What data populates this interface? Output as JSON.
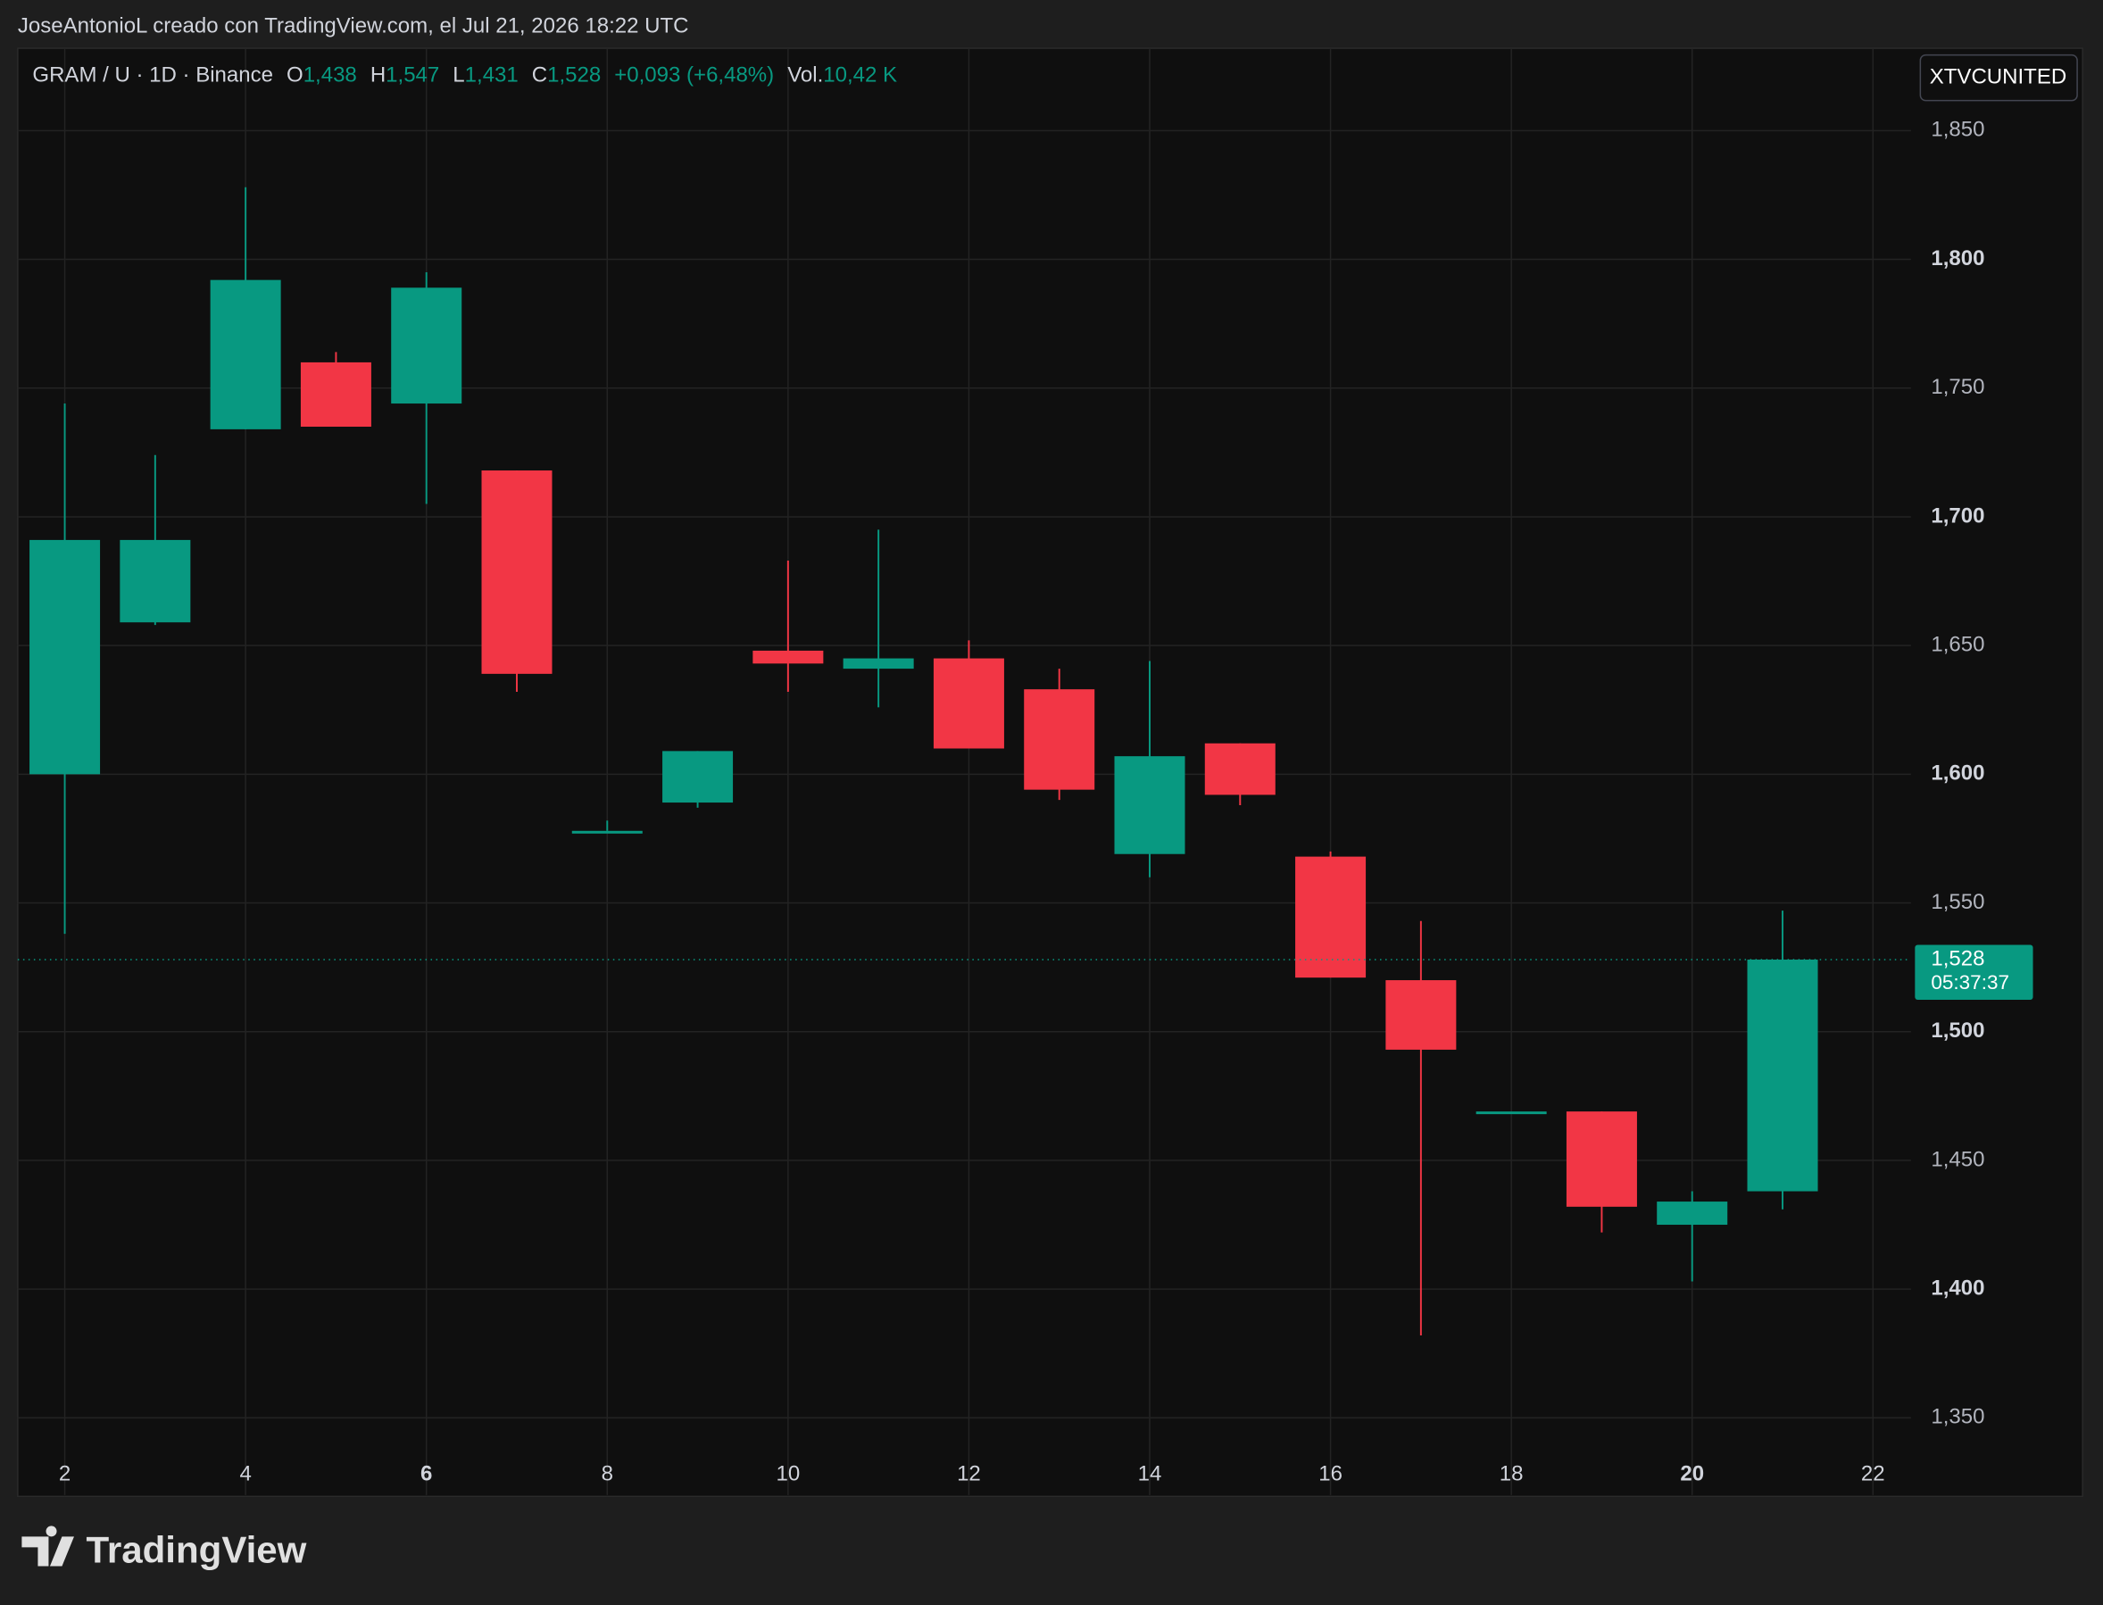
{
  "header": {
    "caption": "JoseAntonioL creado con TradingView.com, el Jul 21, 2026 18:22 UTC",
    "symbol": "GRAM / U · 1D · Binance",
    "o_label": "O",
    "o": "1,438",
    "h_label": "H",
    "h": "1,547",
    "l_label": "L",
    "l": "1,431",
    "c_label": "C",
    "c": "1,528",
    "change": "+0,093 (+6,48%)",
    "vol_label": "Vol.",
    "vol": "10,42 K",
    "exchange_badge": "XTVCUNITED"
  },
  "footer": {
    "brand": "TradingView"
  },
  "chart_data": {
    "type": "candlestick",
    "x": [
      2,
      3,
      4,
      5,
      6,
      7,
      8,
      9,
      10,
      11,
      12,
      13,
      14,
      15,
      16,
      17,
      18,
      19,
      20,
      21
    ],
    "open": [
      1.6,
      1.659,
      1.734,
      1.76,
      1.744,
      1.718,
      1.578,
      1.589,
      1.648,
      1.641,
      1.645,
      1.633,
      1.569,
      1.612,
      1.568,
      1.52,
      1.469,
      1.469,
      1.425,
      1.438
    ],
    "high": [
      1.744,
      1.724,
      1.828,
      1.764,
      1.795,
      1.718,
      1.582,
      1.609,
      1.683,
      1.695,
      1.652,
      1.641,
      1.644,
      1.612,
      1.57,
      1.543,
      1.469,
      1.469,
      1.438,
      1.547
    ],
    "low": [
      1.538,
      1.658,
      1.734,
      1.735,
      1.705,
      1.632,
      1.578,
      1.587,
      1.632,
      1.626,
      1.61,
      1.59,
      1.56,
      1.588,
      1.521,
      1.382,
      1.469,
      1.422,
      1.403,
      1.431
    ],
    "close": [
      1.691,
      1.691,
      1.792,
      1.735,
      1.789,
      1.639,
      1.578,
      1.609,
      1.643,
      1.645,
      1.61,
      1.594,
      1.607,
      1.592,
      1.521,
      1.493,
      1.469,
      1.432,
      1.434,
      1.528
    ],
    "up_color": "#089981",
    "down_color": "#f23645",
    "xlim": [
      1.48,
      22.42
    ],
    "xticks": [
      2,
      4,
      6,
      8,
      10,
      12,
      14,
      16,
      18,
      20,
      22
    ],
    "ylim": [
      1.32,
      1.882
    ],
    "yticks": [
      {
        "value": 1.35,
        "label": "1,350"
      },
      {
        "value": 1.4,
        "label": "1,400"
      },
      {
        "value": 1.45,
        "label": "1,450"
      },
      {
        "value": 1.5,
        "label": "1,500"
      },
      {
        "value": 1.55,
        "label": "1,550"
      },
      {
        "value": 1.6,
        "label": "1,600"
      },
      {
        "value": 1.65,
        "label": "1,650"
      },
      {
        "value": 1.7,
        "label": "1,700"
      },
      {
        "value": 1.75,
        "label": "1,750"
      },
      {
        "value": 1.8,
        "label": "1,800"
      },
      {
        "value": 1.85,
        "label": "1,850"
      }
    ],
    "grid": true,
    "last_price": {
      "value": 1.528,
      "label": "1,528",
      "countdown": "05:37:37"
    }
  }
}
